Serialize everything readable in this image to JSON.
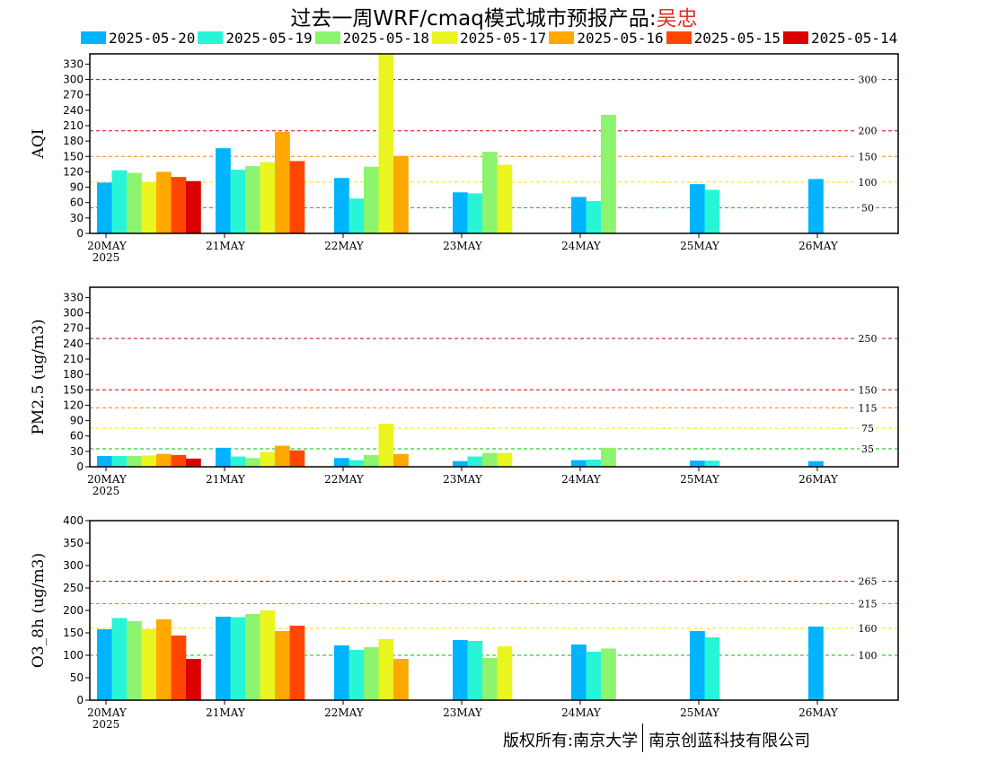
{
  "title": {
    "main": "过去一周WRF/cmaq模式城市预报产品:",
    "city": "吴忠"
  },
  "legend": [
    {
      "label": "2025-05-20",
      "color": "#00b4ff"
    },
    {
      "label": "2025-05-19",
      "color": "#28f5d7"
    },
    {
      "label": "2025-05-18",
      "color": "#8cf46e"
    },
    {
      "label": "2025-05-17",
      "color": "#eaf520"
    },
    {
      "label": "2025-05-16",
      "color": "#ffa800"
    },
    {
      "label": "2025-05-15",
      "color": "#ff4600"
    },
    {
      "label": "2025-05-14",
      "color": "#dc0000"
    }
  ],
  "footer": {
    "left": "版权所有:南京大学",
    "right": "南京创蓝科技有限公司"
  },
  "chart_data": [
    {
      "type": "bar",
      "ylabel": "AQI",
      "categories": [
        "20MAY",
        "21MAY",
        "22MAY",
        "23MAY",
        "24MAY",
        "25MAY",
        "26MAY"
      ],
      "year_label": "2025",
      "ylim": [
        0,
        350
      ],
      "yticks": [
        0,
        30,
        60,
        90,
        120,
        150,
        180,
        210,
        240,
        270,
        300,
        330
      ],
      "thresholds": [
        {
          "value": 300,
          "label": "300",
          "color": "#c0003c"
        },
        {
          "value": 200,
          "label": "200",
          "color": "#e00000"
        },
        {
          "value": 150,
          "label": "150",
          "color": "#ff8000"
        },
        {
          "value": 100,
          "label": "100",
          "color": "#ffe000"
        },
        {
          "value": 50,
          "label": "50",
          "color": "#00c000"
        }
      ],
      "series": [
        {
          "name": "2025-05-20",
          "values": [
            99,
            166,
            108,
            80,
            71,
            96,
            106
          ]
        },
        {
          "name": "2025-05-19",
          "values": [
            123,
            124,
            68,
            78,
            63,
            85,
            null
          ]
        },
        {
          "name": "2025-05-18",
          "values": [
            118,
            131,
            130,
            159,
            231,
            null,
            null
          ]
        },
        {
          "name": "2025-05-17",
          "values": [
            100,
            139,
            350,
            134,
            null,
            null,
            null
          ]
        },
        {
          "name": "2025-05-16",
          "values": [
            120,
            198,
            151,
            null,
            null,
            null,
            null
          ]
        },
        {
          "name": "2025-05-15",
          "values": [
            110,
            141,
            null,
            null,
            null,
            null,
            null
          ]
        },
        {
          "name": "2025-05-14",
          "values": [
            102,
            null,
            null,
            null,
            null,
            null,
            null
          ]
        }
      ]
    },
    {
      "type": "bar",
      "ylabel": "PM2.5 (ug/m3)",
      "categories": [
        "20MAY",
        "21MAY",
        "22MAY",
        "23MAY",
        "24MAY",
        "25MAY",
        "26MAY"
      ],
      "year_label": "2025",
      "ylim": [
        0,
        350
      ],
      "yticks": [
        0,
        30,
        60,
        90,
        120,
        150,
        180,
        210,
        240,
        270,
        300,
        330
      ],
      "thresholds": [
        {
          "value": 250,
          "label": "250",
          "color": "#c0003c"
        },
        {
          "value": 150,
          "label": "150",
          "color": "#e00000"
        },
        {
          "value": 115,
          "label": "115",
          "color": "#ff8000"
        },
        {
          "value": 75,
          "label": "75",
          "color": "#ffe000"
        },
        {
          "value": 35,
          "label": "35",
          "color": "#00c000"
        }
      ],
      "series": [
        {
          "name": "2025-05-20",
          "values": [
            21,
            37,
            17,
            11,
            13,
            12,
            11
          ]
        },
        {
          "name": "2025-05-19",
          "values": [
            21,
            20,
            13,
            20,
            14,
            12,
            null
          ]
        },
        {
          "name": "2025-05-18",
          "values": [
            21,
            17,
            23,
            27,
            37,
            null,
            null
          ]
        },
        {
          "name": "2025-05-17",
          "values": [
            22,
            29,
            84,
            27,
            null,
            null,
            null
          ]
        },
        {
          "name": "2025-05-16",
          "values": [
            25,
            41,
            25,
            null,
            null,
            null,
            null
          ]
        },
        {
          "name": "2025-05-15",
          "values": [
            23,
            32,
            null,
            null,
            null,
            null,
            null
          ]
        },
        {
          "name": "2025-05-14",
          "values": [
            16,
            null,
            null,
            null,
            null,
            null,
            null
          ]
        }
      ]
    },
    {
      "type": "bar",
      "ylabel": "O3_8h (ug/m3)",
      "categories": [
        "20MAY",
        "21MAY",
        "22MAY",
        "23MAY",
        "24MAY",
        "25MAY",
        "26MAY"
      ],
      "year_label": "2025",
      "ylim": [
        0,
        400
      ],
      "yticks": [
        0,
        50,
        100,
        150,
        200,
        250,
        300,
        350,
        400
      ],
      "thresholds": [
        {
          "value": 265,
          "label": "265",
          "color": "#e00000"
        },
        {
          "value": 215,
          "label": "215",
          "color": "#ff8000"
        },
        {
          "value": 160,
          "label": "160",
          "color": "#ffe000"
        },
        {
          "value": 100,
          "label": "100",
          "color": "#00c000"
        }
      ],
      "series": [
        {
          "name": "2025-05-20",
          "values": [
            158,
            186,
            122,
            134,
            124,
            154,
            164
          ]
        },
        {
          "name": "2025-05-19",
          "values": [
            183,
            185,
            112,
            132,
            108,
            140,
            null
          ]
        },
        {
          "name": "2025-05-18",
          "values": [
            176,
            192,
            118,
            94,
            115,
            null,
            null
          ]
        },
        {
          "name": "2025-05-17",
          "values": [
            158,
            200,
            136,
            120,
            null,
            null,
            null
          ]
        },
        {
          "name": "2025-05-16",
          "values": [
            180,
            154,
            92,
            null,
            null,
            null,
            null
          ]
        },
        {
          "name": "2025-05-15",
          "values": [
            144,
            166,
            null,
            null,
            null,
            null,
            null
          ]
        },
        {
          "name": "2025-05-14",
          "values": [
            92,
            null,
            null,
            null,
            null,
            null,
            null
          ]
        }
      ]
    }
  ]
}
